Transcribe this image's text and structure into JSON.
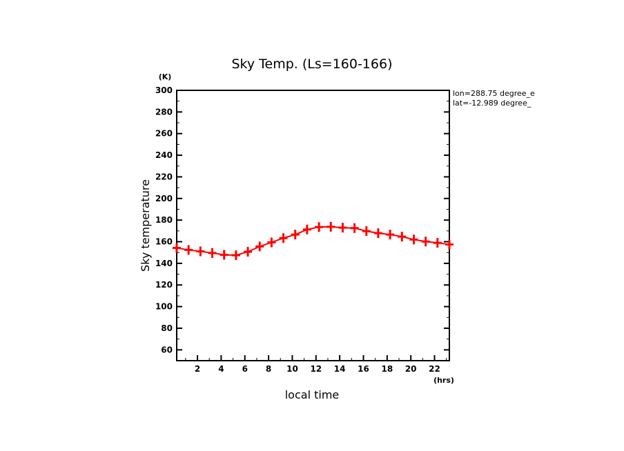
{
  "chart_data": {
    "type": "line",
    "title": "Sky Temp. (Ls=160-166)",
    "xlabel": "local time",
    "ylabel": "Sky temperature",
    "x_unit": "(hrs)",
    "y_unit": "(K)",
    "xlim": [
      0.25,
      23.25
    ],
    "ylim": [
      50,
      300
    ],
    "xticks": [
      2,
      4,
      6,
      8,
      10,
      12,
      14,
      16,
      18,
      20,
      22
    ],
    "yticks": [
      60,
      80,
      100,
      120,
      140,
      160,
      180,
      200,
      220,
      240,
      260,
      280,
      300
    ],
    "annotations": [
      "lon=288.75 degree_e",
      "lat=-12.989 degree_"
    ],
    "series": [
      {
        "name": "Sky temperature",
        "color": "#ff0000",
        "x": [
          0.25,
          1.25,
          2.25,
          3.25,
          4.25,
          5.25,
          6.25,
          7.25,
          8.25,
          9.25,
          10.25,
          11.25,
          12.25,
          13.25,
          14.25,
          15.25,
          16.25,
          17.25,
          18.25,
          19.25,
          20.25,
          21.25,
          22.25,
          23.25
        ],
        "values": [
          154.3,
          152.4,
          151.1,
          149.6,
          147.9,
          147.5,
          150.7,
          155.6,
          159.4,
          163.4,
          166.6,
          171.3,
          173.6,
          173.8,
          173.0,
          172.6,
          169.8,
          167.9,
          166.6,
          164.7,
          162.0,
          160.2,
          159.0,
          157.5
        ]
      }
    ]
  }
}
